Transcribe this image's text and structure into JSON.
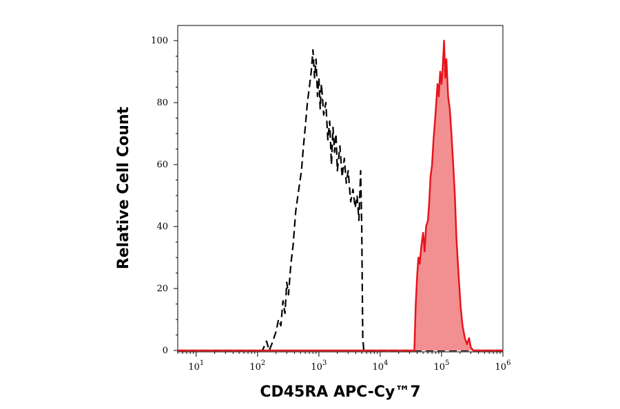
{
  "chart_data": {
    "type": "area",
    "title": "",
    "xlabel": "CD45RA APC-Cy™7",
    "ylabel": "Relative Cell Count",
    "xscale": "log",
    "xlim": [
      5,
      1000000
    ],
    "ylim": [
      0,
      100
    ],
    "xticks": [
      {
        "base": "10",
        "exp": "1",
        "value": 10
      },
      {
        "base": "10",
        "exp": "2",
        "value": 100
      },
      {
        "base": "10",
        "exp": "3",
        "value": 1000
      },
      {
        "base": "10",
        "exp": "4",
        "value": 10000
      },
      {
        "base": "10",
        "exp": "5",
        "value": 100000
      },
      {
        "base": "10",
        "exp": "6",
        "value": 1000000
      }
    ],
    "yticks": [
      "0",
      "20",
      "40",
      "60",
      "80",
      "100"
    ],
    "grid": false,
    "legend": "none",
    "series": [
      {
        "style": "dashed",
        "fill": false,
        "color": "#000000",
        "points": [
          [
            5,
            0
          ],
          [
            120,
            0
          ],
          [
            140,
            3
          ],
          [
            155,
            0
          ],
          [
            170,
            2
          ],
          [
            200,
            6
          ],
          [
            220,
            10
          ],
          [
            240,
            8
          ],
          [
            260,
            16
          ],
          [
            280,
            12
          ],
          [
            300,
            22
          ],
          [
            320,
            18
          ],
          [
            350,
            28
          ],
          [
            380,
            34
          ],
          [
            420,
            45
          ],
          [
            470,
            52
          ],
          [
            520,
            58
          ],
          [
            560,
            66
          ],
          [
            600,
            72
          ],
          [
            650,
            80
          ],
          [
            700,
            85
          ],
          [
            750,
            90
          ],
          [
            800,
            97
          ],
          [
            850,
            88
          ],
          [
            900,
            94
          ],
          [
            950,
            82
          ],
          [
            1000,
            88
          ],
          [
            1050,
            78
          ],
          [
            1100,
            86
          ],
          [
            1200,
            76
          ],
          [
            1300,
            80
          ],
          [
            1400,
            68
          ],
          [
            1500,
            74
          ],
          [
            1600,
            60
          ],
          [
            1700,
            72
          ],
          [
            1800,
            64
          ],
          [
            1900,
            70
          ],
          [
            2000,
            58
          ],
          [
            2200,
            66
          ],
          [
            2400,
            56
          ],
          [
            2600,
            62
          ],
          [
            2800,
            54
          ],
          [
            3000,
            58
          ],
          [
            3300,
            48
          ],
          [
            3600,
            52
          ],
          [
            3900,
            46
          ],
          [
            4200,
            50
          ],
          [
            4500,
            42
          ],
          [
            4800,
            58
          ],
          [
            5000,
            40
          ],
          [
            5100,
            20
          ],
          [
            5200,
            4
          ],
          [
            5400,
            0
          ],
          [
            30000,
            0
          ],
          [
            1000000,
            0
          ]
        ]
      },
      {
        "style": "solid",
        "fill": true,
        "color": "#e8141c",
        "fill_color": "#f28f91",
        "points": [
          [
            5,
            0
          ],
          [
            36000,
            0
          ],
          [
            38000,
            15
          ],
          [
            40000,
            24
          ],
          [
            42000,
            30
          ],
          [
            44000,
            28
          ],
          [
            47000,
            34
          ],
          [
            50000,
            38
          ],
          [
            53000,
            32
          ],
          [
            56000,
            40
          ],
          [
            60000,
            42
          ],
          [
            63000,
            48
          ],
          [
            66000,
            56
          ],
          [
            70000,
            60
          ],
          [
            74000,
            68
          ],
          [
            78000,
            74
          ],
          [
            82000,
            80
          ],
          [
            86000,
            86
          ],
          [
            90000,
            82
          ],
          [
            95000,
            90
          ],
          [
            100000,
            86
          ],
          [
            105000,
            92
          ],
          [
            110000,
            100
          ],
          [
            115000,
            88
          ],
          [
            120000,
            94
          ],
          [
            128000,
            82
          ],
          [
            136000,
            78
          ],
          [
            145000,
            70
          ],
          [
            155000,
            60
          ],
          [
            165000,
            50
          ],
          [
            175000,
            36
          ],
          [
            190000,
            24
          ],
          [
            205000,
            14
          ],
          [
            220000,
            8
          ],
          [
            240000,
            4
          ],
          [
            260000,
            2
          ],
          [
            280000,
            4
          ],
          [
            300000,
            1
          ],
          [
            330000,
            0
          ],
          [
            1000000,
            0
          ]
        ]
      }
    ]
  }
}
